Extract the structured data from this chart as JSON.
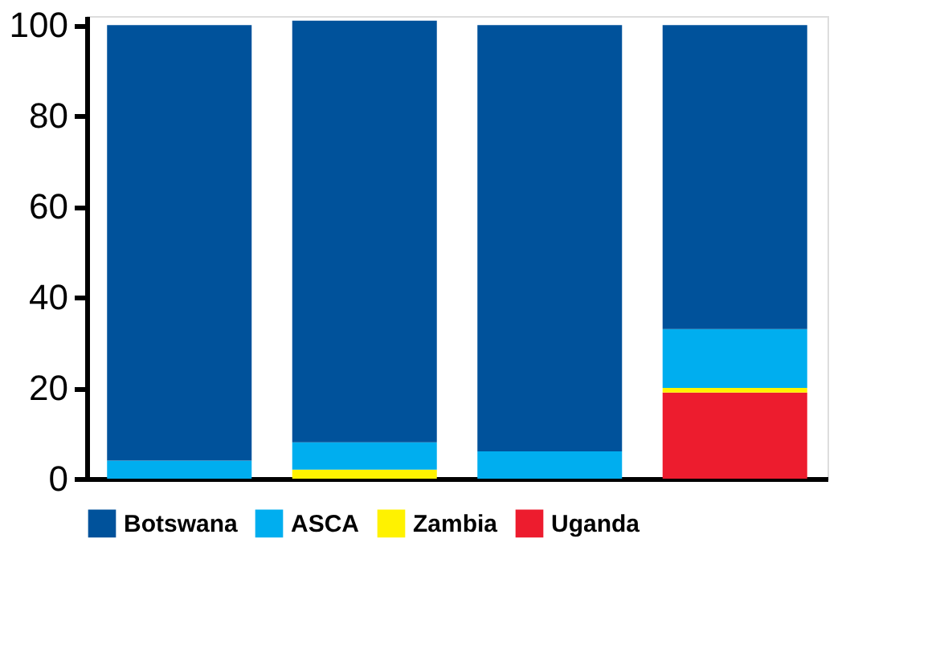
{
  "chart_data": {
    "type": "bar",
    "stacked": true,
    "categories": [
      null,
      null,
      null,
      null
    ],
    "series": [
      {
        "name": "Uganda",
        "color": "#ed1c2e",
        "values": [
          0,
          0,
          0,
          19
        ]
      },
      {
        "name": "Zambia",
        "color": "#fff200",
        "values": [
          0,
          2,
          0,
          1
        ]
      },
      {
        "name": "ASCA",
        "color": "#00aeef",
        "values": [
          4,
          6,
          6,
          13
        ]
      },
      {
        "name": "Botswana",
        "color": "#00529b",
        "values": [
          96,
          93,
          94,
          67
        ]
      }
    ],
    "ylim": [
      0,
      102
    ],
    "yticks": [
      0,
      20,
      40,
      60,
      80,
      100
    ],
    "grid": false,
    "legend": "bottom",
    "tick_labels": "y"
  }
}
